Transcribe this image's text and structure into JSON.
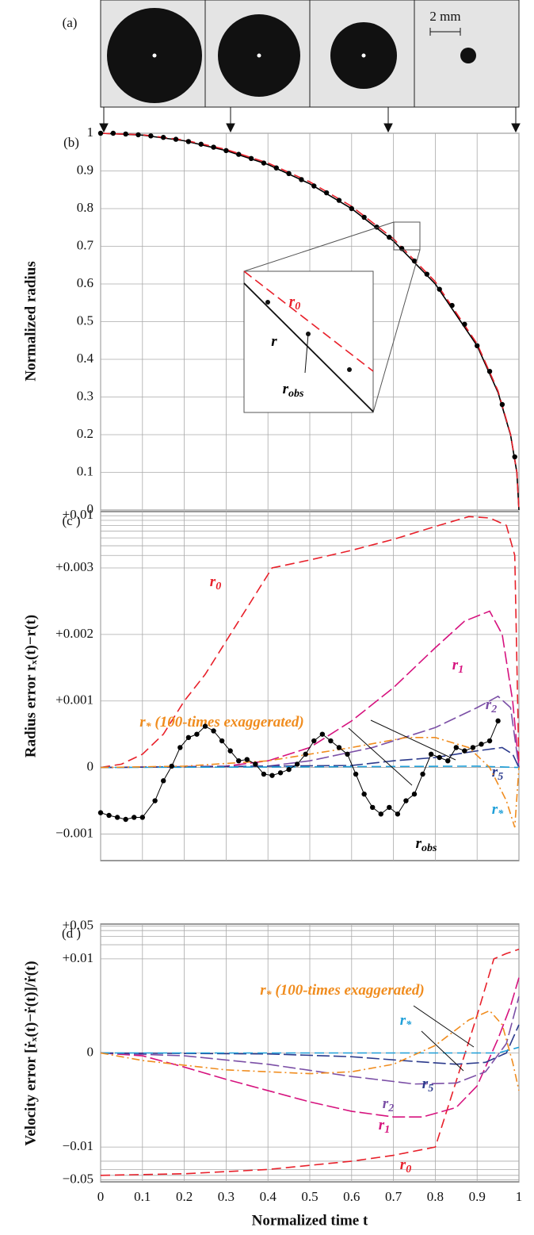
{
  "panel_a": {
    "label": "(a)",
    "scale_bar": "2 mm"
  },
  "chart_data": [
    {
      "type": "line",
      "panel_label": "(b)",
      "ylabel": "Normalized radius",
      "xlim": [
        0,
        1
      ],
      "ylim": [
        0,
        1
      ],
      "xticks": [
        0,
        0.1,
        0.2,
        0.3,
        0.4,
        0.5,
        0.6,
        0.7,
        0.8,
        0.9,
        1
      ],
      "yticks": [
        0,
        0.1,
        0.2,
        0.3,
        0.4,
        0.5,
        0.6,
        0.7,
        0.8,
        0.9,
        1
      ],
      "grid": true,
      "series": [
        {
          "label": {
            "text": "r"
          },
          "color": "#000000",
          "style": "solid",
          "x": [
            0,
            0.1,
            0.2,
            0.3,
            0.4,
            0.5,
            0.6,
            0.7,
            0.8,
            0.9,
            0.95,
            0.98,
            0.995,
            1
          ],
          "values": [
            1,
            0.995,
            0.98,
            0.954,
            0.917,
            0.866,
            0.8,
            0.714,
            0.6,
            0.436,
            0.312,
            0.199,
            0.1,
            0
          ]
        },
        {
          "label": {
            "text": "r",
            "sub": "0"
          },
          "color": "#e8202a",
          "style": "dashed",
          "x": [
            0,
            0.1,
            0.2,
            0.3,
            0.4,
            0.5,
            0.6,
            0.7,
            0.8,
            0.9,
            0.95,
            0.98,
            0.995,
            1
          ],
          "values": [
            1,
            0.996,
            0.982,
            0.957,
            0.921,
            0.871,
            0.806,
            0.72,
            0.606,
            0.441,
            0.316,
            0.201,
            0.1,
            0
          ]
        },
        {
          "label": {
            "text": "r",
            "sub": "obs"
          },
          "color": "#000000",
          "style": "points",
          "x": [
            0,
            0.03,
            0.06,
            0.09,
            0.12,
            0.15,
            0.18,
            0.21,
            0.24,
            0.27,
            0.3,
            0.33,
            0.36,
            0.39,
            0.42,
            0.45,
            0.48,
            0.51,
            0.54,
            0.57,
            0.6,
            0.63,
            0.66,
            0.69,
            0.72,
            0.75,
            0.78,
            0.81,
            0.84,
            0.87,
            0.9,
            0.93,
            0.96,
            0.99
          ],
          "values": [
            1,
            1,
            0.998,
            0.996,
            0.993,
            0.989,
            0.984,
            0.978,
            0.971,
            0.963,
            0.954,
            0.944,
            0.933,
            0.921,
            0.908,
            0.893,
            0.877,
            0.86,
            0.842,
            0.822,
            0.8,
            0.777,
            0.751,
            0.724,
            0.694,
            0.661,
            0.626,
            0.586,
            0.543,
            0.493,
            0.436,
            0.368,
            0.28,
            0.141
          ]
        }
      ]
    },
    {
      "type": "line",
      "panel_label": "(c )",
      "ylabel": "Radius error rₓ(t)−r(t)",
      "xlim": [
        0,
        1
      ],
      "ylim": [
        -0.0014,
        0.011
      ],
      "yscale": "symlog",
      "linthresh": 0.003,
      "xticks": [
        0,
        0.1,
        0.2,
        0.3,
        0.4,
        0.5,
        0.6,
        0.7,
        0.8,
        0.9,
        1
      ],
      "yticks": [
        {
          "value": 0.01,
          "label": "+0.01"
        },
        {
          "value": 0.003,
          "label": "+0.003"
        },
        {
          "value": 0.002,
          "label": "+0.002"
        },
        {
          "value": 0.001,
          "label": "+0.001"
        },
        0,
        {
          "value": -0.001,
          "label": "−0.001"
        }
      ],
      "minor_yticks": [
        0.004,
        0.005,
        0.006,
        0.007,
        0.008,
        0.009
      ],
      "grid": true,
      "series": [
        {
          "label": {
            "text": "r",
            "sub": "0"
          },
          "color": "#e8202a",
          "style": "dashed",
          "x": [
            0,
            0.05,
            0.1,
            0.15,
            0.2,
            0.25,
            0.3,
            0.35,
            0.41,
            0.5,
            0.6,
            0.7,
            0.8,
            0.88,
            0.93,
            0.97,
            0.99,
            1
          ],
          "values": [
            0,
            5e-05,
            0.0002,
            0.0005,
            0.001,
            0.0014,
            0.0019,
            0.0024,
            0.003,
            0.0036,
            0.0045,
            0.0058,
            0.0078,
            0.0098,
            0.0095,
            0.008,
            0.004,
            0
          ]
        },
        {
          "label": {
            "text": "r",
            "sub": "1"
          },
          "color": "#d6127e",
          "style": "longdash",
          "x": [
            0,
            0.3,
            0.4,
            0.5,
            0.6,
            0.7,
            0.8,
            0.87,
            0.93,
            0.96,
            0.985,
            1
          ],
          "values": [
            0,
            2e-05,
            0.0001,
            0.0003,
            0.0007,
            0.0012,
            0.0018,
            0.0022,
            0.00235,
            0.002,
            0.001,
            0
          ]
        },
        {
          "label": {
            "text": "r",
            "sub": "2"
          },
          "color": "#7b4fa6",
          "style": "longdash",
          "x": [
            0,
            0.4,
            0.5,
            0.65,
            0.8,
            0.9,
            0.95,
            0.98,
            1
          ],
          "values": [
            0,
            2e-05,
            0.0001,
            0.0003,
            0.0006,
            0.0009,
            0.00107,
            0.0009,
            0
          ]
        },
        {
          "label": {
            "text": "r",
            "sub": "5"
          },
          "color": "#2b3a8c",
          "style": "longdash",
          "x": [
            0,
            0.6,
            0.7,
            0.8,
            0.9,
            0.96,
            0.985,
            1
          ],
          "values": [
            0,
            3e-05,
            0.0001,
            0.00015,
            0.00025,
            0.0003,
            0.0002,
            0
          ]
        },
        {
          "label": {
            "text": "r",
            "sub": "*"
          },
          "color": "#1e9fd8",
          "style": "dashed",
          "x": [
            0,
            0.5,
            0.9,
            1
          ],
          "values": [
            0,
            1e-05,
            2e-05,
            0
          ]
        },
        {
          "label": {
            "text": "r",
            "sub": "*",
            "suffix": " (100-times exaggerated)"
          },
          "color": "#f08c1e",
          "style": "dashdot",
          "x": [
            0,
            0.2,
            0.4,
            0.6,
            0.73,
            0.8,
            0.88,
            0.93,
            0.97,
            0.99,
            1
          ],
          "values": [
            0,
            2e-05,
            0.0001,
            0.0003,
            0.00045,
            0.00045,
            0.0003,
            0,
            -0.0005,
            -0.0009,
            0
          ]
        },
        {
          "label": {
            "text": "r",
            "sub": "obs"
          },
          "color": "#000000",
          "style": "points-line",
          "x": [
            0,
            0.02,
            0.04,
            0.06,
            0.08,
            0.1,
            0.13,
            0.15,
            0.17,
            0.19,
            0.21,
            0.23,
            0.25,
            0.27,
            0.29,
            0.31,
            0.33,
            0.35,
            0.37,
            0.39,
            0.41,
            0.43,
            0.45,
            0.47,
            0.49,
            0.51,
            0.53,
            0.55,
            0.57,
            0.59,
            0.61,
            0.63,
            0.65,
            0.67,
            0.69,
            0.71,
            0.73,
            0.75,
            0.77,
            0.79,
            0.81,
            0.83,
            0.85,
            0.87,
            0.89,
            0.91,
            0.93,
            0.95
          ],
          "values": [
            -0.00068,
            -0.00072,
            -0.00075,
            -0.00078,
            -0.00075,
            -0.00075,
            -0.0005,
            -0.0002,
            2e-05,
            0.0003,
            0.00045,
            0.0005,
            0.00062,
            0.00055,
            0.0004,
            0.00025,
            0.0001,
            0.00012,
            5e-05,
            -0.0001,
            -0.00012,
            -8e-05,
            -3e-05,
            5e-05,
            0.0002,
            0.0004,
            0.0005,
            0.0004,
            0.0003,
            0.0002,
            -0.0001,
            -0.0004,
            -0.0006,
            -0.0007,
            -0.0006,
            -0.0007,
            -0.0005,
            -0.0004,
            -0.0001,
            0.0002,
            0.00015,
            0.0001,
            0.0003,
            0.00025,
            0.0003,
            0.00035,
            0.0004,
            0.0007
          ]
        }
      ]
    },
    {
      "type": "line",
      "panel_label": "(d )",
      "ylabel": "Velocity error [ṙₓ(t)−ṙ(t)]/ṙ(t)",
      "xlabel": "Normalized time t",
      "xlim": [
        0,
        1
      ],
      "ylim": [
        -0.055,
        0.055
      ],
      "yscale": "symlog",
      "linthresh": 0.01,
      "xticks": [
        0,
        0.1,
        0.2,
        0.3,
        0.4,
        0.5,
        0.6,
        0.7,
        0.8,
        0.9,
        1
      ],
      "yticks": [
        {
          "value": 0.05,
          "label": "+0.05"
        },
        {
          "value": 0.01,
          "label": "+0.01"
        },
        0,
        {
          "value": -0.01,
          "label": "−0.01"
        },
        {
          "value": -0.05,
          "label": "−0.05"
        }
      ],
      "minor_yticks": [
        0.02,
        0.03,
        0.04,
        -0.02,
        -0.03,
        -0.04
      ],
      "grid": true,
      "series": [
        {
          "label": {
            "text": "r",
            "sub": "0"
          },
          "color": "#e8202a",
          "style": "dashed",
          "x": [
            0,
            0.2,
            0.4,
            0.6,
            0.7,
            0.8,
            0.85,
            0.9,
            0.94,
            0.97,
            1
          ],
          "values": [
            -0.04,
            -0.037,
            -0.03,
            -0.02,
            -0.015,
            -0.01,
            -0.003,
            0.004,
            0.01,
            0.013,
            0.016
          ]
        },
        {
          "label": {
            "text": "r",
            "sub": "1"
          },
          "color": "#d6127e",
          "style": "longdash",
          "x": [
            0,
            0.1,
            0.2,
            0.3,
            0.4,
            0.5,
            0.6,
            0.7,
            0.77,
            0.85,
            0.9,
            0.95,
            0.98,
            1
          ],
          "values": [
            0,
            -0.0003,
            -0.0015,
            -0.0028,
            -0.004,
            -0.0052,
            -0.0062,
            -0.0068,
            -0.0068,
            -0.0058,
            -0.0035,
            0.0015,
            0.005,
            0.008
          ]
        },
        {
          "label": {
            "text": "r",
            "sub": "2"
          },
          "color": "#7b4fa6",
          "style": "longdash",
          "x": [
            0,
            0.2,
            0.4,
            0.6,
            0.75,
            0.85,
            0.92,
            0.97,
            1
          ],
          "values": [
            0,
            -0.0003,
            -0.0012,
            -0.0025,
            -0.0033,
            -0.0032,
            -0.002,
            0.001,
            0.006
          ]
        },
        {
          "label": {
            "text": "r",
            "sub": "5"
          },
          "color": "#2b3a8c",
          "style": "longdash",
          "x": [
            0,
            0.4,
            0.6,
            0.75,
            0.85,
            0.92,
            0.97,
            1
          ],
          "values": [
            0,
            -0.0001,
            -0.0004,
            -0.0009,
            -0.0012,
            -0.001,
            0,
            0.003
          ]
        },
        {
          "label": {
            "text": "r",
            "sub": "*"
          },
          "color": "#1e9fd8",
          "style": "dashed",
          "x": [
            0,
            0.95,
            1
          ],
          "values": [
            0,
            0,
            0.0006
          ]
        },
        {
          "label": {
            "text": "r",
            "sub": "*",
            "suffix": " (100-times exaggerated)"
          },
          "color": "#f08c1e",
          "style": "dashdot",
          "x": [
            0,
            0.1,
            0.3,
            0.5,
            0.6,
            0.7,
            0.8,
            0.88,
            0.93,
            0.96,
            0.985,
            1
          ],
          "values": [
            0,
            -0.0008,
            -0.0018,
            -0.0022,
            -0.002,
            -0.0012,
            0.0008,
            0.0035,
            0.0045,
            0.003,
            -0.001,
            -0.004
          ]
        }
      ]
    }
  ]
}
